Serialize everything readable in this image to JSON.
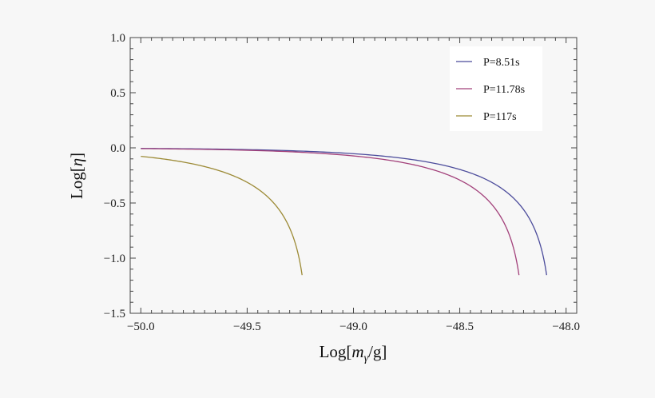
{
  "chart_data": {
    "type": "line",
    "title": "",
    "xlabel": "Log[mγ/g]",
    "xlabel_parts": {
      "prefix": "Log[",
      "var": "m",
      "sub": "γ",
      "suffix": "/g]"
    },
    "ylabel": "Log[η]",
    "ylabel_parts": {
      "prefix": "Log[",
      "var": "η",
      "suffix": "]"
    },
    "xlim": [
      -50.05,
      -47.95
    ],
    "ylim": [
      -1.5,
      1.0
    ],
    "xticks": [
      -50.0,
      -49.5,
      -49.0,
      -48.5,
      -48.0
    ],
    "xtick_labels": [
      "−50.0",
      "−49.5",
      "−49.0",
      "−48.5",
      "−48.0"
    ],
    "yticks": [
      1.0,
      0.5,
      0.0,
      -0.5,
      -1.0,
      -1.5
    ],
    "ytick_labels": [
      "1.0",
      "0.5",
      "0.0",
      "−0.5",
      "−1.0",
      "−1.5"
    ],
    "grid": false,
    "legend_position": "top-right",
    "series": [
      {
        "name": "P=8.51s",
        "color": "#4b4b9b",
        "cutoff": -48.06
      },
      {
        "name": "P=11.78s",
        "color": "#a2407a",
        "cutoff": -48.19
      },
      {
        "name": "P=117s",
        "color": "#9c8a35",
        "cutoff": -49.21
      }
    ]
  }
}
